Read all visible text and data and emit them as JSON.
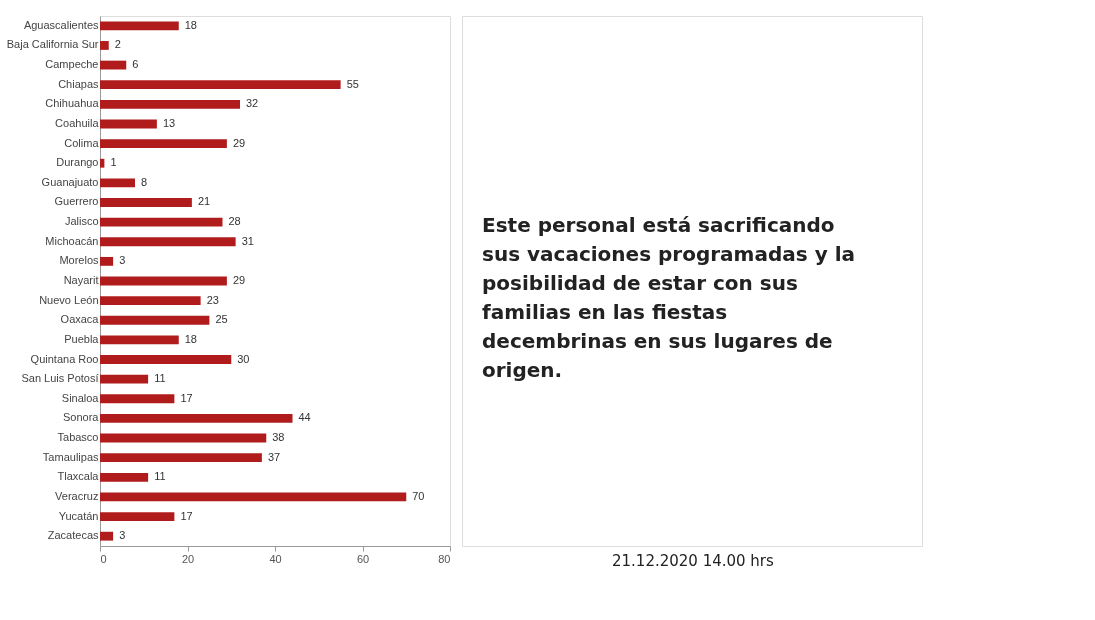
{
  "chart_data": {
    "type": "bar",
    "orientation": "horizontal",
    "categories": [
      "Aguascalientes",
      "Baja California Sur",
      "Campeche",
      "Chiapas",
      "Chihuahua",
      "Coahuila",
      "Colima",
      "Durango",
      "Guanajuato",
      "Guerrero",
      "Jalisco",
      "Michoacán",
      "Morelos",
      "Nayarit",
      "Nuevo León",
      "Oaxaca",
      "Puebla",
      "Quintana Roo",
      "San Luis Potosí",
      "Sinaloa",
      "Sonora",
      "Tabasco",
      "Tamaulipas",
      "Tlaxcala",
      "Veracruz",
      "Yucatán",
      "Zacatecas"
    ],
    "values": [
      18,
      2,
      6,
      55,
      32,
      13,
      29,
      1,
      8,
      21,
      28,
      31,
      3,
      29,
      23,
      25,
      18,
      30,
      11,
      17,
      44,
      38,
      37,
      11,
      70,
      17,
      3
    ],
    "color": "#b01c1c",
    "xlim": [
      0,
      80
    ],
    "xticks": [
      0,
      20,
      40,
      60,
      80
    ],
    "data_labels": true,
    "grid": false,
    "annotations": [
      "Este personal está sacrificando sus vacaciones programadas y la posibilidad de estar con sus familias en las fiestas decembrinas en sus lugares de origen.",
      "21.12.2020 14.00 hrs"
    ]
  }
}
